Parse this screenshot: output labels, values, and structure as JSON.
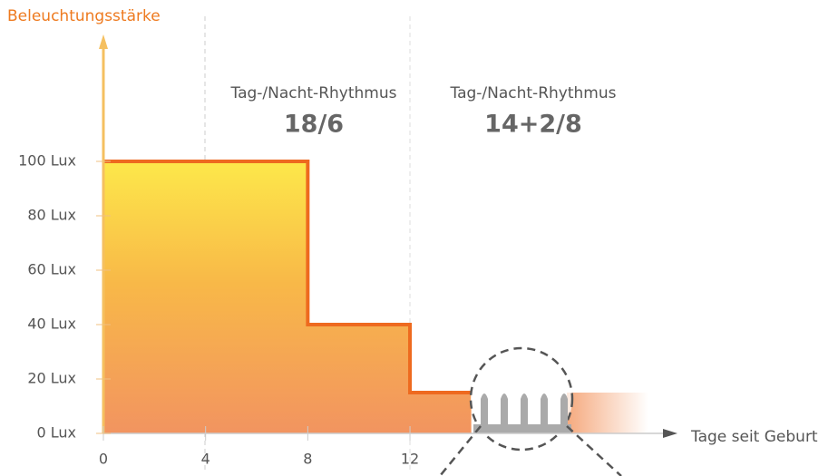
{
  "chart_data": {
    "type": "line",
    "y_label": "Beleuchtungsstärke",
    "x_label": "Tage seit Geburt",
    "annotations": [
      {
        "text": "Tag-/Nacht-Rhythmus",
        "value": "18/6"
      },
      {
        "text": "Tag-/Nacht-Rhythmus",
        "value": "14+2/8"
      }
    ],
    "x": [
      0,
      8,
      8,
      12,
      12,
      14.4
    ],
    "values": [
      100,
      100,
      40,
      40,
      15,
      15
    ],
    "color": "#ee6a1f",
    "xlim": [
      0,
      22.4
    ],
    "ylim": [
      0,
      146
    ],
    "xticks": [
      0,
      4,
      8,
      12
    ],
    "yticks": [
      {
        "value": 0,
        "label": "0 Lux"
      },
      {
        "value": 20,
        "label": "20 Lux"
      },
      {
        "value": 40,
        "label": "40 Lux"
      },
      {
        "value": 60,
        "label": "60 Lux"
      },
      {
        "value": 80,
        "label": "80 Lux"
      },
      {
        "value": 100,
        "label": "100 Lux"
      }
    ]
  }
}
